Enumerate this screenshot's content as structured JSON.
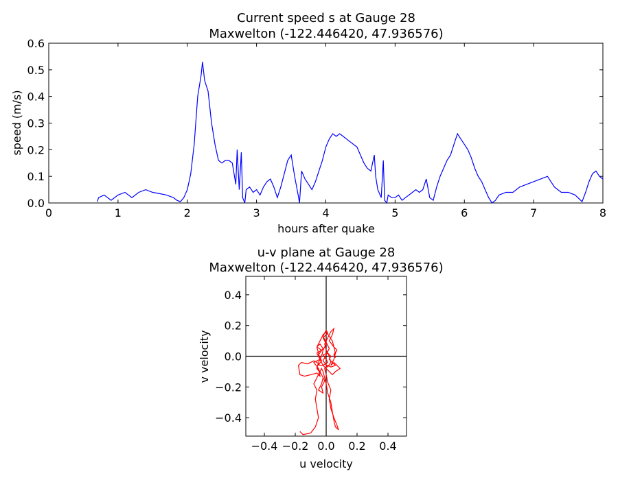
{
  "chart_data": [
    {
      "type": "line",
      "title": "Current speed s at Gauge 28",
      "subtitle": "Maxwelton  (-122.446420, 47.936576)",
      "xlabel": "hours after quake",
      "ylabel": "speed (m/s)",
      "xlim": [
        0,
        8
      ],
      "ylim": [
        0,
        0.6
      ],
      "xticks": [
        0,
        1,
        2,
        3,
        4,
        5,
        6,
        7,
        8
      ],
      "yticks": [
        0.0,
        0.1,
        0.2,
        0.3,
        0.4,
        0.5,
        0.6
      ],
      "grid": false,
      "series_color": "#0000ff",
      "x": [
        0.7,
        0.72,
        0.8,
        0.9,
        1.0,
        1.1,
        1.2,
        1.3,
        1.4,
        1.5,
        1.6,
        1.7,
        1.8,
        1.85,
        1.9,
        1.95,
        2.0,
        2.05,
        2.1,
        2.15,
        2.2,
        2.22,
        2.25,
        2.3,
        2.35,
        2.4,
        2.45,
        2.5,
        2.55,
        2.6,
        2.65,
        2.7,
        2.72,
        2.75,
        2.78,
        2.8,
        2.83,
        2.85,
        2.9,
        2.95,
        3.0,
        3.05,
        3.1,
        3.15,
        3.2,
        3.25,
        3.3,
        3.35,
        3.4,
        3.45,
        3.5,
        3.55,
        3.6,
        3.62,
        3.65,
        3.7,
        3.75,
        3.8,
        3.85,
        3.9,
        3.95,
        4.0,
        4.05,
        4.1,
        4.15,
        4.2,
        4.25,
        4.3,
        4.35,
        4.4,
        4.45,
        4.5,
        4.55,
        4.6,
        4.65,
        4.7,
        4.72,
        4.75,
        4.8,
        4.83,
        4.85,
        4.88,
        4.9,
        4.95,
        5.0,
        5.05,
        5.1,
        5.15,
        5.2,
        5.25,
        5.3,
        5.35,
        5.4,
        5.45,
        5.5,
        5.55,
        5.6,
        5.65,
        5.7,
        5.75,
        5.8,
        5.85,
        5.9,
        5.95,
        6.0,
        6.05,
        6.1,
        6.15,
        6.2,
        6.25,
        6.3,
        6.35,
        6.4,
        6.45,
        6.5,
        6.55,
        6.6,
        6.7,
        6.8,
        6.9,
        7.0,
        7.1,
        7.2,
        7.25,
        7.3,
        7.35,
        7.4,
        7.5,
        7.6,
        7.7,
        7.75,
        7.8,
        7.85,
        7.9,
        7.95,
        8.0
      ],
      "values": [
        0.005,
        0.02,
        0.03,
        0.01,
        0.03,
        0.04,
        0.02,
        0.04,
        0.05,
        0.04,
        0.035,
        0.03,
        0.02,
        0.01,
        0.005,
        0.02,
        0.05,
        0.11,
        0.22,
        0.4,
        0.48,
        0.53,
        0.46,
        0.42,
        0.3,
        0.22,
        0.16,
        0.15,
        0.16,
        0.16,
        0.15,
        0.07,
        0.2,
        0.05,
        0.19,
        0.02,
        0.0,
        0.05,
        0.06,
        0.04,
        0.05,
        0.03,
        0.06,
        0.08,
        0.09,
        0.06,
        0.02,
        0.06,
        0.11,
        0.16,
        0.18,
        0.1,
        0.03,
        0.0,
        0.12,
        0.09,
        0.07,
        0.05,
        0.08,
        0.12,
        0.16,
        0.21,
        0.24,
        0.26,
        0.25,
        0.26,
        0.25,
        0.24,
        0.23,
        0.22,
        0.21,
        0.18,
        0.15,
        0.13,
        0.12,
        0.18,
        0.1,
        0.05,
        0.02,
        0.16,
        0.01,
        0.0,
        0.03,
        0.02,
        0.02,
        0.03,
        0.01,
        0.02,
        0.03,
        0.04,
        0.05,
        0.04,
        0.05,
        0.09,
        0.02,
        0.01,
        0.06,
        0.1,
        0.13,
        0.16,
        0.18,
        0.22,
        0.26,
        0.24,
        0.22,
        0.2,
        0.17,
        0.13,
        0.1,
        0.08,
        0.05,
        0.02,
        0.0,
        0.01,
        0.03,
        0.035,
        0.04,
        0.04,
        0.06,
        0.07,
        0.08,
        0.09,
        0.1,
        0.08,
        0.06,
        0.05,
        0.04,
        0.04,
        0.03,
        0.005,
        0.04,
        0.08,
        0.11,
        0.12,
        0.1,
        0.09
      ]
    },
    {
      "type": "line",
      "title": "u-v plane at Gauge 28",
      "subtitle": "Maxwelton  (-122.446420, 47.936576)",
      "xlabel": "u velocity",
      "ylabel": "v velocity",
      "xlim": [
        -0.52,
        0.52
      ],
      "ylim": [
        -0.52,
        0.52
      ],
      "xticks": [
        -0.4,
        -0.2,
        0.0,
        0.2,
        0.4
      ],
      "yticks": [
        -0.4,
        -0.2,
        0.0,
        0.2,
        0.4
      ],
      "xtick_labels": [
        "−0.4",
        "−0.2",
        "0.0",
        "0.2",
        "0.4"
      ],
      "ytick_labels": [
        "−0.4",
        "−0.2",
        "0.0",
        "0.2",
        "0.4"
      ],
      "grid": false,
      "zero_lines": true,
      "series_color": "#ff0000",
      "x": [
        -0.17,
        -0.15,
        -0.1,
        -0.07,
        -0.05,
        -0.06,
        -0.07,
        -0.06,
        -0.08,
        -0.06,
        -0.04,
        -0.03,
        -0.02,
        -0.01,
        0.0,
        0.01,
        0.03,
        0.04,
        0.05,
        0.06,
        0.08,
        0.07,
        0.05,
        0.03,
        0.02,
        0.03,
        0.01,
        0.0,
        -0.01,
        0.01,
        0.03,
        0.06,
        0.04,
        0.02,
        0.03,
        0.01,
        -0.02,
        0.0,
        0.01,
        -0.02,
        -0.04,
        -0.06,
        -0.08,
        -0.12,
        -0.16,
        -0.18,
        -0.17,
        -0.14,
        -0.1,
        -0.06,
        -0.04,
        -0.05,
        -0.08,
        -0.04,
        -0.06,
        -0.03,
        -0.06,
        -0.04,
        -0.02,
        -0.05,
        -0.03,
        -0.06,
        -0.04,
        -0.02,
        -0.03,
        -0.05,
        -0.02,
        -0.03,
        -0.01,
        -0.03,
        -0.06,
        -0.05,
        -0.03,
        -0.02,
        0.0,
        -0.02,
        0.01,
        0.0,
        -0.02,
        0.0,
        0.02,
        0.0,
        -0.02,
        0.01,
        0.03,
        0.02,
        0.0,
        -0.01,
        0.01,
        0.03,
        0.05,
        0.04,
        0.02,
        0.05,
        0.06,
        0.05,
        0.03,
        0.05,
        0.07,
        0.09,
        0.06,
        0.04,
        0.02,
        0.0,
        -0.02,
        -0.04,
        -0.05,
        -0.06,
        -0.04,
        -0.02,
        0.0,
        0.02,
        0.04,
        0.05,
        0.07,
        0.06,
        0.05,
        0.06,
        0.05,
        0.06
      ],
      "y": [
        -0.49,
        -0.51,
        -0.5,
        -0.46,
        -0.4,
        -0.34,
        -0.28,
        -0.22,
        -0.18,
        -0.14,
        -0.1,
        -0.08,
        -0.1,
        -0.14,
        -0.18,
        -0.24,
        -0.3,
        -0.36,
        -0.42,
        -0.46,
        -0.48,
        -0.45,
        -0.4,
        -0.34,
        -0.28,
        -0.22,
        -0.17,
        -0.12,
        -0.08,
        -0.06,
        -0.07,
        -0.06,
        -0.04,
        -0.02,
        0.0,
        0.02,
        0.01,
        -0.02,
        -0.04,
        -0.06,
        -0.06,
        -0.04,
        -0.03,
        -0.05,
        -0.04,
        -0.06,
        -0.12,
        -0.13,
        -0.12,
        -0.11,
        -0.13,
        -0.08,
        -0.04,
        -0.02,
        0.02,
        0.04,
        0.06,
        0.08,
        0.05,
        0.01,
        -0.03,
        -0.07,
        -0.1,
        -0.14,
        -0.18,
        -0.22,
        -0.24,
        -0.2,
        -0.16,
        -0.12,
        -0.08,
        -0.04,
        0.0,
        0.04,
        0.08,
        0.12,
        0.15,
        0.17,
        0.13,
        0.09,
        0.05,
        0.01,
        -0.03,
        -0.07,
        -0.04,
        0.0,
        0.04,
        0.08,
        0.12,
        0.16,
        0.18,
        0.14,
        0.1,
        0.06,
        0.02,
        -0.02,
        -0.06,
        -0.04,
        -0.06,
        -0.08,
        -0.1,
        -0.12,
        -0.1,
        -0.08,
        -0.06,
        -0.02,
        0.02,
        0.06,
        0.1,
        0.14,
        0.16,
        0.13,
        0.1,
        0.06,
        0.04,
        0.02,
        0.0,
        -0.01,
        0.01,
        0.03
      ]
    }
  ]
}
